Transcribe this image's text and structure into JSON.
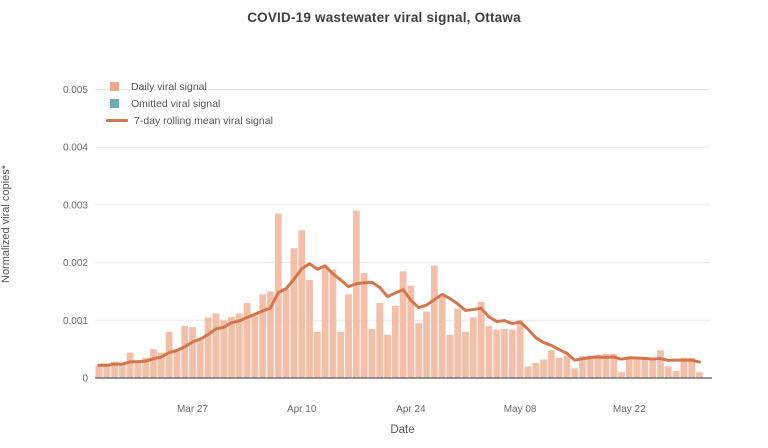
{
  "title": "COVID-19 wastewater viral signal, Ottawa",
  "legend": {
    "items": [
      {
        "label": "Daily viral signal",
        "swatch": "square",
        "color": "#f0a78c"
      },
      {
        "label": "Omitted viral signal",
        "swatch": "square",
        "color": "#6aabb0"
      },
      {
        "label": "7-day rolling mean viral signal",
        "swatch": "line",
        "color": "#cf7950"
      }
    ]
  },
  "axes": {
    "y": {
      "title": "Normalized viral copies*",
      "ticks": [
        "0",
        "0.001",
        "0.002",
        "0.003",
        "0.004",
        "0.005"
      ]
    },
    "x": {
      "title": "Date",
      "ticks": [
        {
          "label": "Mar 27",
          "day_index": 12
        },
        {
          "label": "Apr 10",
          "day_index": 26
        },
        {
          "label": "Apr 24",
          "day_index": 40
        },
        {
          "label": "May 08",
          "day_index": 54
        },
        {
          "label": "May 22",
          "day_index": 68
        }
      ]
    }
  },
  "chart_data": {
    "type": "bar",
    "title": "COVID-19 wastewater viral signal, Ottawa",
    "xlabel": "Date",
    "ylabel": "Normalized viral copies*",
    "ylim": [
      0,
      0.0053
    ],
    "grid": true,
    "legend_position": "top-left-inside",
    "dates": [
      "Mar 15",
      "Mar 16",
      "Mar 17",
      "Mar 18",
      "Mar 19",
      "Mar 20",
      "Mar 21",
      "Mar 22",
      "Mar 23",
      "Mar 24",
      "Mar 25",
      "Mar 26",
      "Mar 27",
      "Mar 28",
      "Mar 29",
      "Mar 30",
      "Mar 31",
      "Apr 01",
      "Apr 02",
      "Apr 03",
      "Apr 04",
      "Apr 05",
      "Apr 06",
      "Apr 07",
      "Apr 08",
      "Apr 09",
      "Apr 10",
      "Apr 11",
      "Apr 12",
      "Apr 13",
      "Apr 14",
      "Apr 15",
      "Apr 16",
      "Apr 17",
      "Apr 18",
      "Apr 19",
      "Apr 20",
      "Apr 21",
      "Apr 22",
      "Apr 23",
      "Apr 24",
      "Apr 25",
      "Apr 26",
      "Apr 27",
      "Apr 28",
      "Apr 29",
      "Apr 30",
      "May 01",
      "May 02",
      "May 03",
      "May 04",
      "May 05",
      "May 06",
      "May 07",
      "May 08",
      "May 09",
      "May 10",
      "May 11",
      "May 12",
      "May 13",
      "May 14",
      "May 15",
      "May 16",
      "May 17",
      "May 18",
      "May 19",
      "May 20",
      "May 21",
      "May 22",
      "May 23",
      "May 24",
      "May 25",
      "May 26",
      "May 27",
      "May 28",
      "May 29",
      "May 30",
      "May 31"
    ],
    "series": [
      {
        "name": "Daily viral signal",
        "type": "bar",
        "color": "#f4bfa9",
        "values": [
          0.00022,
          0.00022,
          0.00028,
          0.00024,
          0.00044,
          0.0003,
          0.00035,
          0.0005,
          0.00044,
          0.0008,
          0.0005,
          0.0009,
          0.00088,
          0.0007,
          0.00105,
          0.00112,
          0.001,
          0.00106,
          0.00112,
          0.0013,
          0.00108,
          0.00145,
          0.0015,
          0.00285,
          0.00155,
          0.00225,
          0.00256,
          0.0017,
          0.0008,
          0.0019,
          0.00188,
          0.0008,
          0.00145,
          0.0029,
          0.00182,
          0.00085,
          0.0013,
          0.00075,
          0.00125,
          0.00185,
          0.0016,
          0.00095,
          0.00115,
          0.00195,
          0.0014,
          0.00075,
          0.0012,
          0.0008,
          0.00105,
          0.00132,
          0.0009,
          0.00084,
          0.00085,
          0.00084,
          0.001,
          0.0002,
          0.00026,
          0.00032,
          0.00048,
          0.00035,
          0.00038,
          0.00017,
          0.00038,
          0.00039,
          0.0004,
          0.00042,
          0.00042,
          0.0001,
          0.00035,
          0.00034,
          0.00034,
          0.00033,
          0.00048,
          0.0002,
          0.00012,
          0.00035,
          0.00035,
          0.0001
        ]
      },
      {
        "name": "Omitted viral signal",
        "type": "bar",
        "color": "#6aabb0",
        "values": []
      },
      {
        "name": "7-day rolling mean viral signal",
        "type": "line",
        "color": "#d3764e",
        "values": [
          0.00022,
          0.00022,
          0.00024,
          0.00024,
          0.00028,
          0.000283,
          0.000293,
          0.000333,
          0.000364,
          0.000439,
          0.000476,
          0.000541,
          0.000624,
          0.000674,
          0.000753,
          0.00085,
          0.000879,
          0.000959,
          0.00099,
          0.00105,
          0.001104,
          0.001161,
          0.001216,
          0.00148,
          0.00155,
          0.001711,
          0.001891,
          0.00198,
          0.001887,
          0.001944,
          0.001806,
          0.001699,
          0.001584,
          0.001633,
          0.00165,
          0.001657,
          0.001571,
          0.00141,
          0.001474,
          0.001531,
          0.001346,
          0.001221,
          0.001264,
          0.001357,
          0.00145,
          0.001379,
          0.001286,
          0.001171,
          0.001186,
          0.00121,
          0.00106,
          0.00098,
          0.000994,
          0.000943,
          0.000971,
          0.00085,
          0.000699,
          0.000616,
          0.000564,
          0.000493,
          0.000427,
          0.000309,
          0.000334,
          0.000353,
          0.000364,
          0.000356,
          0.000366,
          0.000326,
          0.000351,
          0.000346,
          0.000339,
          0.000329,
          0.000337,
          0.000306,
          0.000309,
          0.000309,
          0.00031,
          0.000276
        ]
      }
    ]
  },
  "colors": {
    "bar_fill": "#f4bfa9",
    "rolling_line": "#d3764e",
    "omitted_fill": "#6aabb0",
    "gridline": "#e7e7e7",
    "zero_line": "#757575",
    "tick_text": "#696969",
    "title_text": "#3f3f3f"
  }
}
